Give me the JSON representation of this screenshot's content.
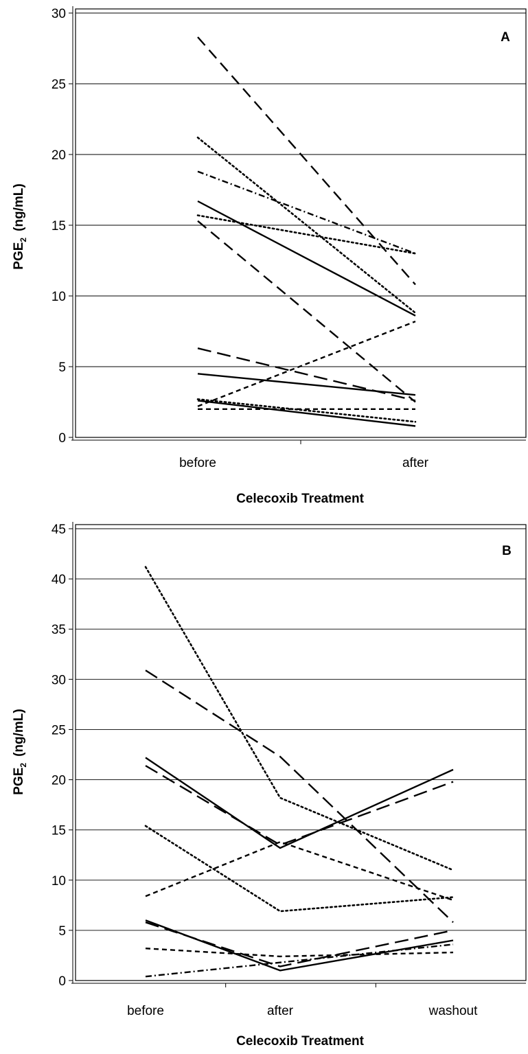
{
  "chart_data": [
    {
      "type": "line",
      "panel_label": "A",
      "categories": [
        "before",
        "after"
      ],
      "xlabel": "Celecoxib Treatment",
      "ylabel_main": "PGE",
      "ylabel_sub": "2",
      "ylabel_unit": "(ng/mL)",
      "ylim": [
        0,
        30
      ],
      "yticks": [
        "0",
        "5",
        "10",
        "15",
        "20",
        "25",
        "30"
      ],
      "grid": true,
      "series": [
        {
          "style": "dashed",
          "values": [
            28.3,
            10.8
          ]
        },
        {
          "style": "dotted",
          "values": [
            21.2,
            8.8
          ]
        },
        {
          "style": "dashdot",
          "values": [
            18.8,
            13.0
          ]
        },
        {
          "style": "solid",
          "values": [
            16.7,
            8.6
          ]
        },
        {
          "style": "dotted",
          "values": [
            15.7,
            13.0
          ]
        },
        {
          "style": "dashed",
          "values": [
            15.3,
            2.5
          ]
        },
        {
          "style": "longdash",
          "values": [
            6.3,
            2.6
          ]
        },
        {
          "style": "solid",
          "values": [
            4.5,
            3.0
          ]
        },
        {
          "style": "shortdash",
          "values": [
            2.2,
            8.2
          ]
        },
        {
          "style": "solid",
          "values": [
            2.6,
            0.8
          ]
        },
        {
          "style": "dotted",
          "values": [
            2.7,
            1.1
          ]
        },
        {
          "style": "shortdash",
          "values": [
            2.0,
            2.0
          ]
        }
      ]
    },
    {
      "type": "line",
      "panel_label": "B",
      "categories": [
        "before",
        "after",
        "washout"
      ],
      "xlabel": "Celecoxib Treatment",
      "ylabel_main": "PGE",
      "ylabel_sub": "2",
      "ylabel_unit": "(ng/mL)",
      "ylim": [
        0,
        45
      ],
      "yticks": [
        "0",
        "5",
        "10",
        "15",
        "20",
        "25",
        "30",
        "35",
        "40",
        "45"
      ],
      "grid": true,
      "series": [
        {
          "style": "dotted",
          "values": [
            41.2,
            18.2,
            11.0
          ]
        },
        {
          "style": "longdash",
          "values": [
            30.9,
            22.3,
            5.8
          ]
        },
        {
          "style": "solid",
          "values": [
            22.2,
            13.2,
            21.0
          ]
        },
        {
          "style": "longdash",
          "values": [
            21.4,
            13.5,
            19.8
          ]
        },
        {
          "style": "dotted",
          "values": [
            15.4,
            6.9,
            8.3
          ]
        },
        {
          "style": "shortdash",
          "values": [
            8.4,
            13.8,
            8.0
          ]
        },
        {
          "style": "solid",
          "values": [
            6.0,
            1.0,
            4.0
          ]
        },
        {
          "style": "longdash",
          "values": [
            5.8,
            1.4,
            5.0
          ]
        },
        {
          "style": "shortdash",
          "values": [
            3.2,
            2.4,
            2.8
          ]
        },
        {
          "style": "dashdot",
          "values": [
            0.4,
            1.8,
            3.6
          ]
        }
      ]
    }
  ]
}
